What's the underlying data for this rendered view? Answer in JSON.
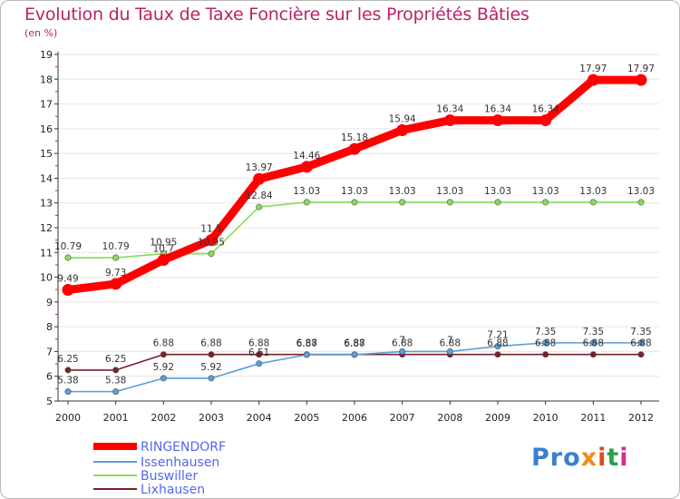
{
  "title": "Evolution du Taux de Taxe Foncière sur les Propriétés Bâties",
  "subtitle": "(en %)",
  "logo": {
    "p1": "Pro",
    "p2": "x",
    "p3": "i",
    "p4": "t",
    "p5": "i"
  },
  "chart_data": {
    "type": "line",
    "title": "Evolution du Taux de Taxe Foncière sur les Propriétés Bâties",
    "ylabel": "(en %)",
    "xlabel": "",
    "x": [
      "2000",
      "2001",
      "2002",
      "2003",
      "2004",
      "2005",
      "2006",
      "2007",
      "2008",
      "2009",
      "2010",
      "2011",
      "2012"
    ],
    "ylim": [
      5,
      19
    ],
    "yticks": [
      "5",
      "6",
      "7",
      "8",
      "9",
      "10",
      "11",
      "12",
      "13",
      "14",
      "15",
      "16",
      "17",
      "18",
      "19"
    ],
    "legend_position": "bottom-left",
    "series": [
      {
        "name": "RINGENDORF",
        "color": "#ff0000",
        "values": [
          9.49,
          9.73,
          10.7,
          11.5,
          13.97,
          14.46,
          15.18,
          15.94,
          16.34,
          16.34,
          16.34,
          17.97,
          17.97
        ],
        "labels": [
          "9.49",
          "9.73",
          "10.7",
          "11.5",
          "13.97",
          "14.46",
          "15.18",
          "15.94",
          "16.34",
          "16.34",
          "16.34",
          "17.97",
          "17.97"
        ]
      },
      {
        "name": "Issenhausen",
        "color": "#5a9ed6",
        "values": [
          5.38,
          5.38,
          5.92,
          5.92,
          6.51,
          6.87,
          6.87,
          7,
          7,
          7.21,
          7.35,
          7.35,
          7.35
        ],
        "labels": [
          "5.38",
          "5.38",
          "5.92",
          "5.92",
          "6.51",
          "6.87",
          "6.87",
          "7",
          "7",
          "7.21",
          "7.35",
          "7.35",
          "7.35"
        ]
      },
      {
        "name": "Buswiller",
        "color": "#88dd55",
        "values": [
          10.79,
          10.79,
          10.95,
          10.95,
          12.84,
          13.03,
          13.03,
          13.03,
          13.03,
          13.03,
          13.03,
          13.03,
          13.03
        ],
        "labels": [
          "10.79",
          "10.79",
          "10.95",
          "10.95",
          "12.84",
          "13.03",
          "13.03",
          "13.03",
          "13.03",
          "13.03",
          "13.03",
          "13.03",
          "13.03"
        ]
      },
      {
        "name": "Lixhausen",
        "color": "#7a1f2b",
        "values": [
          6.25,
          6.25,
          6.88,
          6.88,
          6.88,
          6.88,
          6.88,
          6.88,
          6.88,
          6.88,
          6.88,
          6.88,
          6.88
        ],
        "labels": [
          "6.25",
          "6.25",
          "6.88",
          "6.88",
          "6.88",
          "6.88",
          "6.88",
          "6.88",
          "6.88",
          "6.88",
          "6.88",
          "6.88",
          "6.88"
        ]
      }
    ]
  }
}
